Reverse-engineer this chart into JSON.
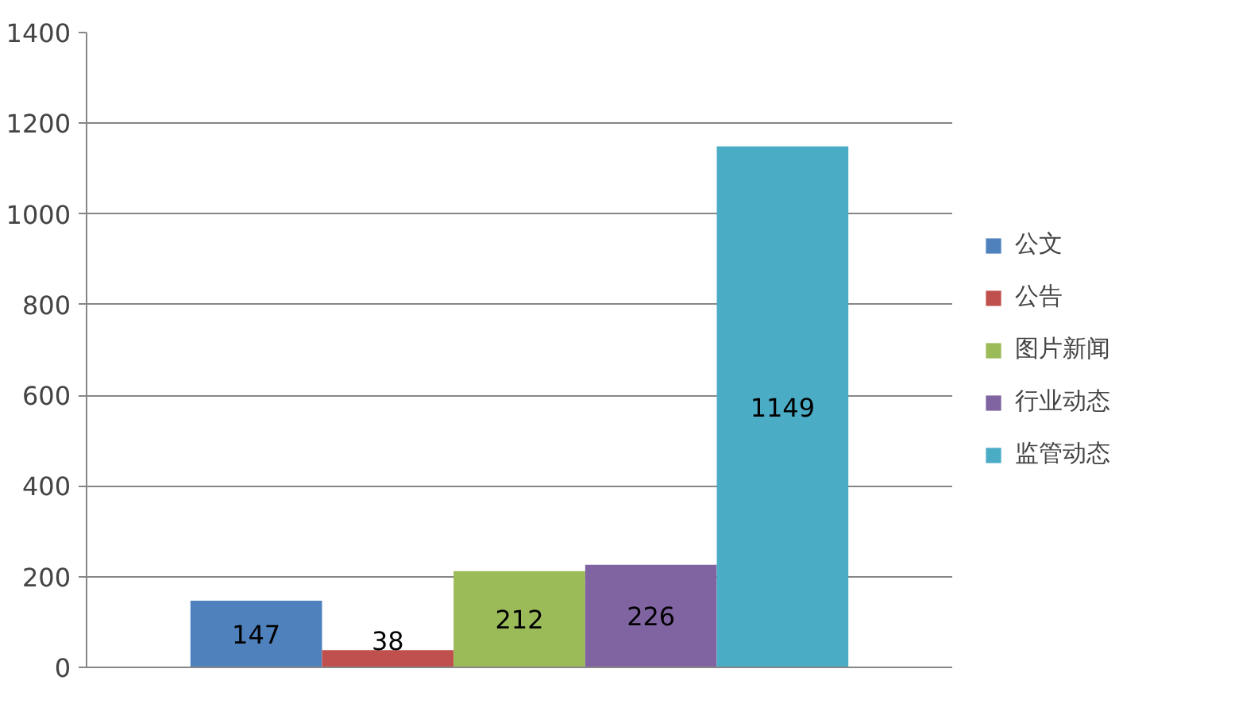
{
  "chart_data": {
    "type": "bar",
    "categories": [
      null
    ],
    "series": [
      {
        "name": "公文",
        "color": "#4f81bd",
        "values": [
          147
        ]
      },
      {
        "name": "公告",
        "color": "#c0504d",
        "values": [
          38
        ]
      },
      {
        "name": "图片新闻",
        "color": "#9bbb59",
        "values": [
          212
        ]
      },
      {
        "name": "行业动态",
        "color": "#8064a2",
        "values": [
          226
        ]
      },
      {
        "name": "监管动态",
        "color": "#4bacc6",
        "values": [
          1149
        ]
      }
    ],
    "ylim": [
      0,
      1400
    ],
    "yticks": [
      0,
      200,
      400,
      600,
      800,
      1000,
      1200,
      1400
    ],
    "grid": "y",
    "legend": "right",
    "data_labels": true
  }
}
